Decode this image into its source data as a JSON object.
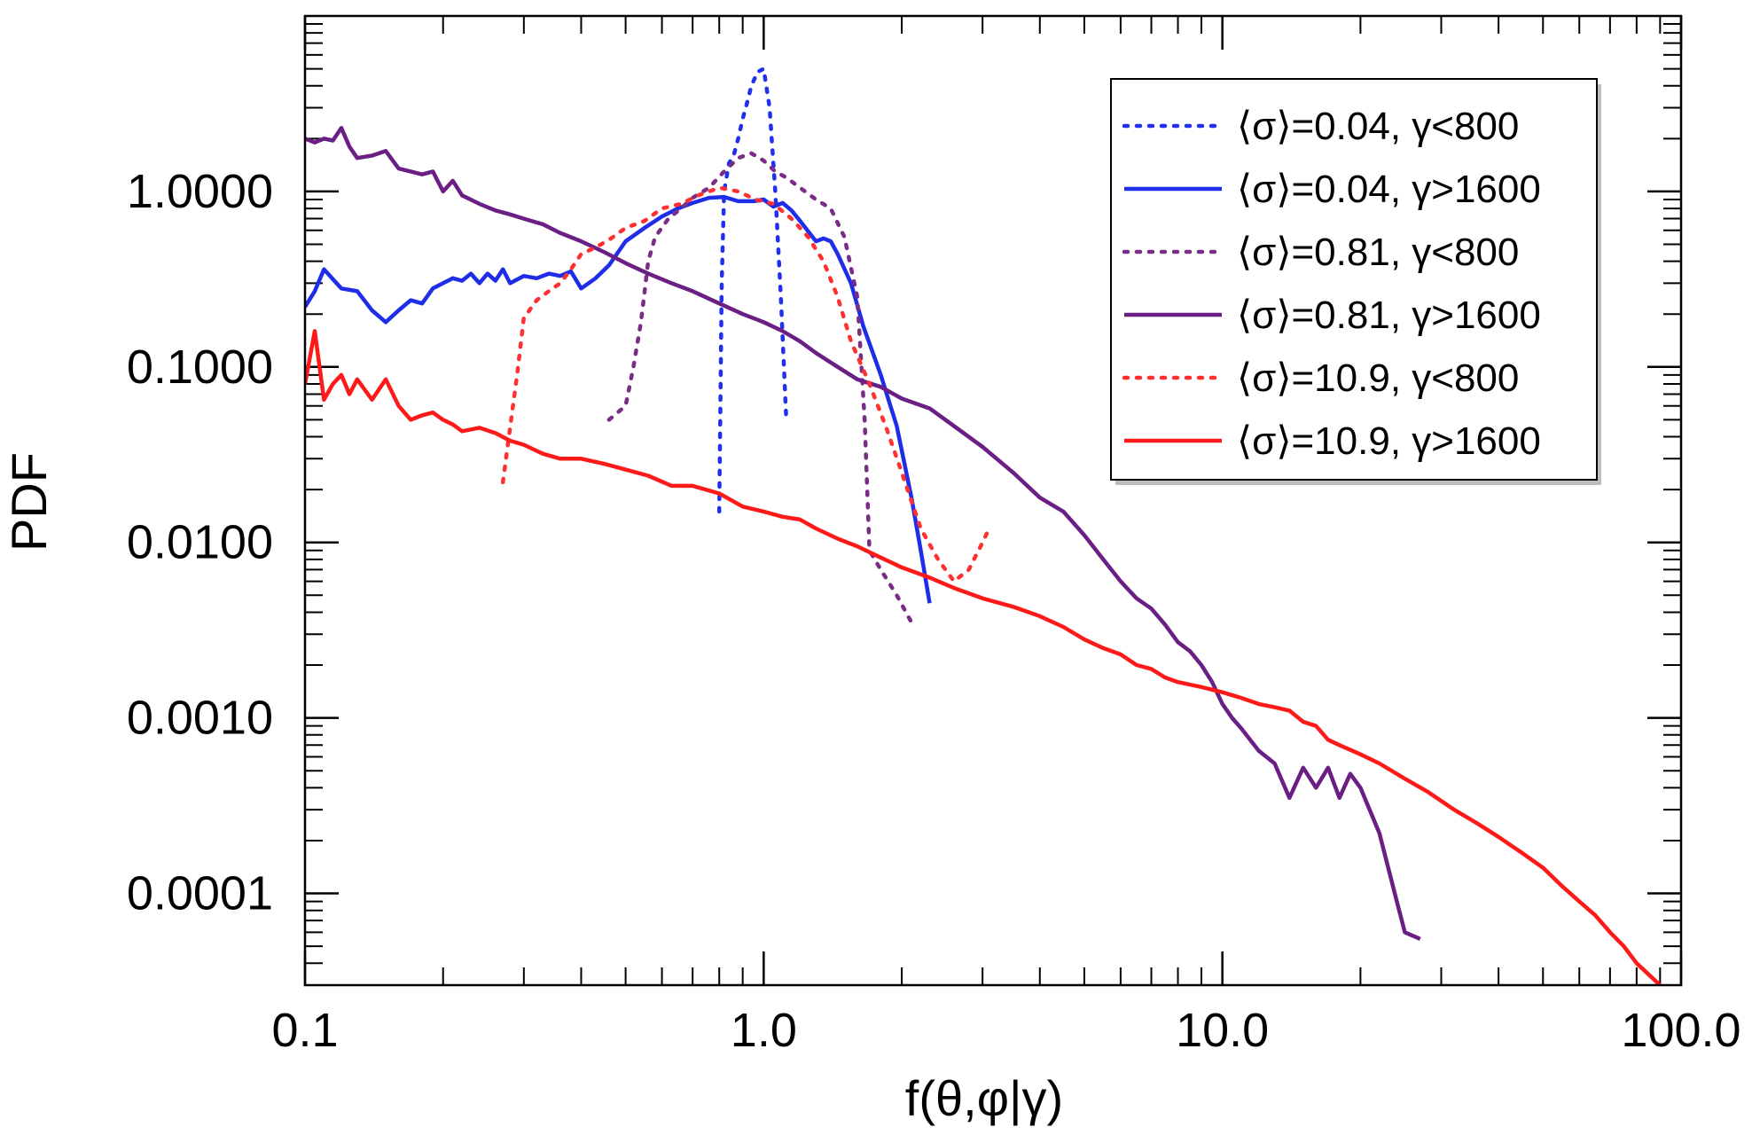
{
  "chart_data": {
    "type": "line",
    "xscale": "log",
    "yscale": "log",
    "xlim": [
      0.1,
      100.0
    ],
    "ylim": [
      3e-05,
      10.0
    ],
    "xlabel": "f(θ,φ|γ)",
    "ylabel": "PDF",
    "x_ticks": [
      {
        "value": 0.1,
        "label": "0.1"
      },
      {
        "value": 1.0,
        "label": "1.0"
      },
      {
        "value": 10.0,
        "label": "10.0"
      },
      {
        "value": 100.0,
        "label": "100.0"
      }
    ],
    "y_ticks": [
      {
        "value": 1.0,
        "label": "1.0000"
      },
      {
        "value": 0.1,
        "label": "0.1000"
      },
      {
        "value": 0.01,
        "label": "0.0100"
      },
      {
        "value": 0.001,
        "label": "0.0010"
      },
      {
        "value": 0.0001,
        "label": "0.0001"
      }
    ],
    "legend_position": "top-right",
    "series": [
      {
        "name": "⟨σ⟩=0.04, γ<800",
        "color": "#2030ee",
        "style": "dotted",
        "x": [
          0.8,
          0.81,
          0.82,
          0.84,
          0.86,
          0.88,
          0.9,
          0.92,
          0.94,
          0.97,
          1.0,
          1.03,
          1.06,
          1.09,
          1.12
        ],
        "y": [
          0.015,
          0.3,
          1.0,
          1.45,
          1.6,
          2.0,
          2.6,
          3.2,
          4.0,
          4.8,
          5.0,
          3.0,
          1.0,
          0.25,
          0.05
        ]
      },
      {
        "name": "⟨σ⟩=0.04, γ>1600",
        "color": "#1e2ee8",
        "style": "solid",
        "x": [
          0.1,
          0.105,
          0.11,
          0.12,
          0.13,
          0.14,
          0.15,
          0.16,
          0.17,
          0.18,
          0.19,
          0.2,
          0.21,
          0.22,
          0.23,
          0.24,
          0.25,
          0.26,
          0.27,
          0.28,
          0.3,
          0.32,
          0.34,
          0.36,
          0.38,
          0.4,
          0.43,
          0.46,
          0.5,
          0.55,
          0.6,
          0.65,
          0.7,
          0.76,
          0.82,
          0.88,
          0.95,
          1.0,
          1.05,
          1.1,
          1.15,
          1.2,
          1.3,
          1.35,
          1.4,
          1.45,
          1.55,
          1.65,
          1.8,
          1.95,
          2.1,
          2.2,
          2.3
        ],
        "y": [
          0.22,
          0.27,
          0.36,
          0.28,
          0.27,
          0.21,
          0.18,
          0.21,
          0.24,
          0.23,
          0.28,
          0.3,
          0.32,
          0.31,
          0.34,
          0.3,
          0.34,
          0.31,
          0.36,
          0.3,
          0.33,
          0.32,
          0.34,
          0.33,
          0.35,
          0.28,
          0.32,
          0.38,
          0.52,
          0.62,
          0.72,
          0.8,
          0.86,
          0.92,
          0.93,
          0.88,
          0.88,
          0.9,
          0.82,
          0.86,
          0.78,
          0.68,
          0.52,
          0.54,
          0.52,
          0.44,
          0.3,
          0.17,
          0.09,
          0.046,
          0.018,
          0.009,
          0.0045
        ]
      },
      {
        "name": "⟨σ⟩=0.81, γ<800",
        "color": "#7a2d86",
        "style": "dotted",
        "x": [
          0.46,
          0.5,
          0.52,
          0.54,
          0.56,
          0.58,
          0.62,
          0.66,
          0.7,
          0.76,
          0.82,
          0.88,
          0.94,
          1.0,
          1.06,
          1.12,
          1.2,
          1.3,
          1.4,
          1.5,
          1.6,
          1.66,
          1.7,
          1.8,
          1.95,
          2.1
        ],
        "y": [
          0.05,
          0.06,
          0.1,
          0.18,
          0.4,
          0.55,
          0.7,
          0.8,
          0.92,
          1.05,
          1.3,
          1.55,
          1.65,
          1.5,
          1.3,
          1.2,
          1.05,
          0.9,
          0.8,
          0.55,
          0.25,
          0.05,
          0.009,
          0.007,
          0.005,
          0.0035
        ]
      },
      {
        "name": "⟨σ⟩=0.81, γ>1600",
        "color": "#6b1f84",
        "style": "solid",
        "x": [
          0.1,
          0.105,
          0.11,
          0.115,
          0.12,
          0.125,
          0.13,
          0.14,
          0.15,
          0.16,
          0.17,
          0.18,
          0.19,
          0.2,
          0.21,
          0.22,
          0.24,
          0.26,
          0.28,
          0.3,
          0.33,
          0.36,
          0.4,
          0.45,
          0.5,
          0.56,
          0.63,
          0.7,
          0.8,
          0.9,
          1.0,
          1.1,
          1.2,
          1.3,
          1.45,
          1.6,
          1.8,
          2.0,
          2.3,
          2.6,
          3.0,
          3.5,
          4.0,
          4.5,
          5.0,
          5.5,
          6.0,
          6.5,
          7.0,
          7.5,
          8.0,
          8.5,
          9.0,
          9.5,
          10.0,
          10.5,
          11.0,
          12.0,
          13.0,
          14.0,
          15.0,
          16.0,
          17.0,
          18.0,
          19.0,
          20.0,
          22.0,
          24.0,
          25.0,
          27.0
        ],
        "y": [
          2.0,
          1.9,
          2.0,
          1.95,
          2.3,
          1.8,
          1.55,
          1.6,
          1.7,
          1.35,
          1.3,
          1.25,
          1.3,
          1.0,
          1.15,
          0.95,
          0.85,
          0.78,
          0.74,
          0.7,
          0.65,
          0.58,
          0.52,
          0.45,
          0.39,
          0.34,
          0.3,
          0.27,
          0.23,
          0.2,
          0.18,
          0.16,
          0.14,
          0.12,
          0.1,
          0.085,
          0.077,
          0.066,
          0.058,
          0.046,
          0.035,
          0.025,
          0.018,
          0.015,
          0.011,
          0.008,
          0.006,
          0.0048,
          0.0042,
          0.0034,
          0.0027,
          0.0024,
          0.002,
          0.0016,
          0.0012,
          0.001,
          0.00087,
          0.00065,
          0.00055,
          0.00035,
          0.00052,
          0.0004,
          0.00052,
          0.00035,
          0.00048,
          0.0004,
          0.00022,
          9e-05,
          6e-05,
          5.5e-05
        ]
      },
      {
        "name": "⟨σ⟩=10.9, γ<800",
        "color": "#ff3030",
        "style": "dotted",
        "x": [
          0.27,
          0.28,
          0.29,
          0.3,
          0.32,
          0.34,
          0.36,
          0.38,
          0.4,
          0.43,
          0.46,
          0.5,
          0.55,
          0.6,
          0.66,
          0.72,
          0.8,
          0.88,
          0.96,
          1.05,
          1.15,
          1.25,
          1.35,
          1.45,
          1.55,
          1.7,
          1.85,
          2.0,
          2.2,
          2.4,
          2.6,
          2.8,
          3.0,
          3.1
        ],
        "y": [
          0.022,
          0.045,
          0.09,
          0.19,
          0.24,
          0.27,
          0.3,
          0.36,
          0.44,
          0.48,
          0.53,
          0.62,
          0.68,
          0.8,
          0.85,
          0.95,
          1.05,
          1.0,
          0.9,
          0.85,
          0.7,
          0.55,
          0.4,
          0.25,
          0.14,
          0.08,
          0.045,
          0.025,
          0.012,
          0.008,
          0.006,
          0.007,
          0.01,
          0.012
        ]
      },
      {
        "name": "⟨σ⟩=10.9, γ>1600",
        "color": "#ff1a1a",
        "style": "solid",
        "x": [
          0.1,
          0.105,
          0.11,
          0.115,
          0.12,
          0.125,
          0.13,
          0.14,
          0.15,
          0.16,
          0.17,
          0.18,
          0.19,
          0.2,
          0.21,
          0.22,
          0.24,
          0.26,
          0.28,
          0.3,
          0.33,
          0.36,
          0.4,
          0.45,
          0.5,
          0.56,
          0.63,
          0.7,
          0.8,
          0.9,
          1.0,
          1.1,
          1.2,
          1.3,
          1.45,
          1.6,
          1.8,
          2.0,
          2.3,
          2.6,
          3.0,
          3.5,
          4.0,
          4.5,
          5.0,
          5.5,
          6.0,
          6.5,
          7.0,
          7.5,
          8.0,
          9.0,
          10.0,
          11.0,
          12.0,
          13.0,
          14.0,
          15.0,
          16.0,
          17.0,
          18.0,
          20.0,
          22.0,
          25.0,
          28.0,
          32.0,
          36.0,
          40.0,
          45.0,
          50.0,
          55.0,
          60.0,
          65.0,
          70.0,
          75.0,
          80.0,
          90.0
        ],
        "y": [
          0.08,
          0.16,
          0.065,
          0.08,
          0.09,
          0.07,
          0.085,
          0.065,
          0.085,
          0.06,
          0.05,
          0.053,
          0.055,
          0.05,
          0.047,
          0.043,
          0.045,
          0.042,
          0.038,
          0.036,
          0.032,
          0.03,
          0.03,
          0.028,
          0.026,
          0.024,
          0.021,
          0.021,
          0.019,
          0.016,
          0.015,
          0.014,
          0.0135,
          0.012,
          0.0105,
          0.0095,
          0.0082,
          0.0072,
          0.0063,
          0.0055,
          0.0048,
          0.0043,
          0.0038,
          0.0033,
          0.0028,
          0.0025,
          0.0023,
          0.002,
          0.0019,
          0.0017,
          0.0016,
          0.0015,
          0.0014,
          0.0013,
          0.0012,
          0.00115,
          0.0011,
          0.00095,
          0.0009,
          0.00075,
          0.0007,
          0.00062,
          0.00055,
          0.00045,
          0.00038,
          0.0003,
          0.00025,
          0.00021,
          0.00017,
          0.00014,
          0.00011,
          9e-05,
          7.5e-05,
          6e-05,
          5e-05,
          4e-05,
          3e-05
        ]
      }
    ]
  }
}
